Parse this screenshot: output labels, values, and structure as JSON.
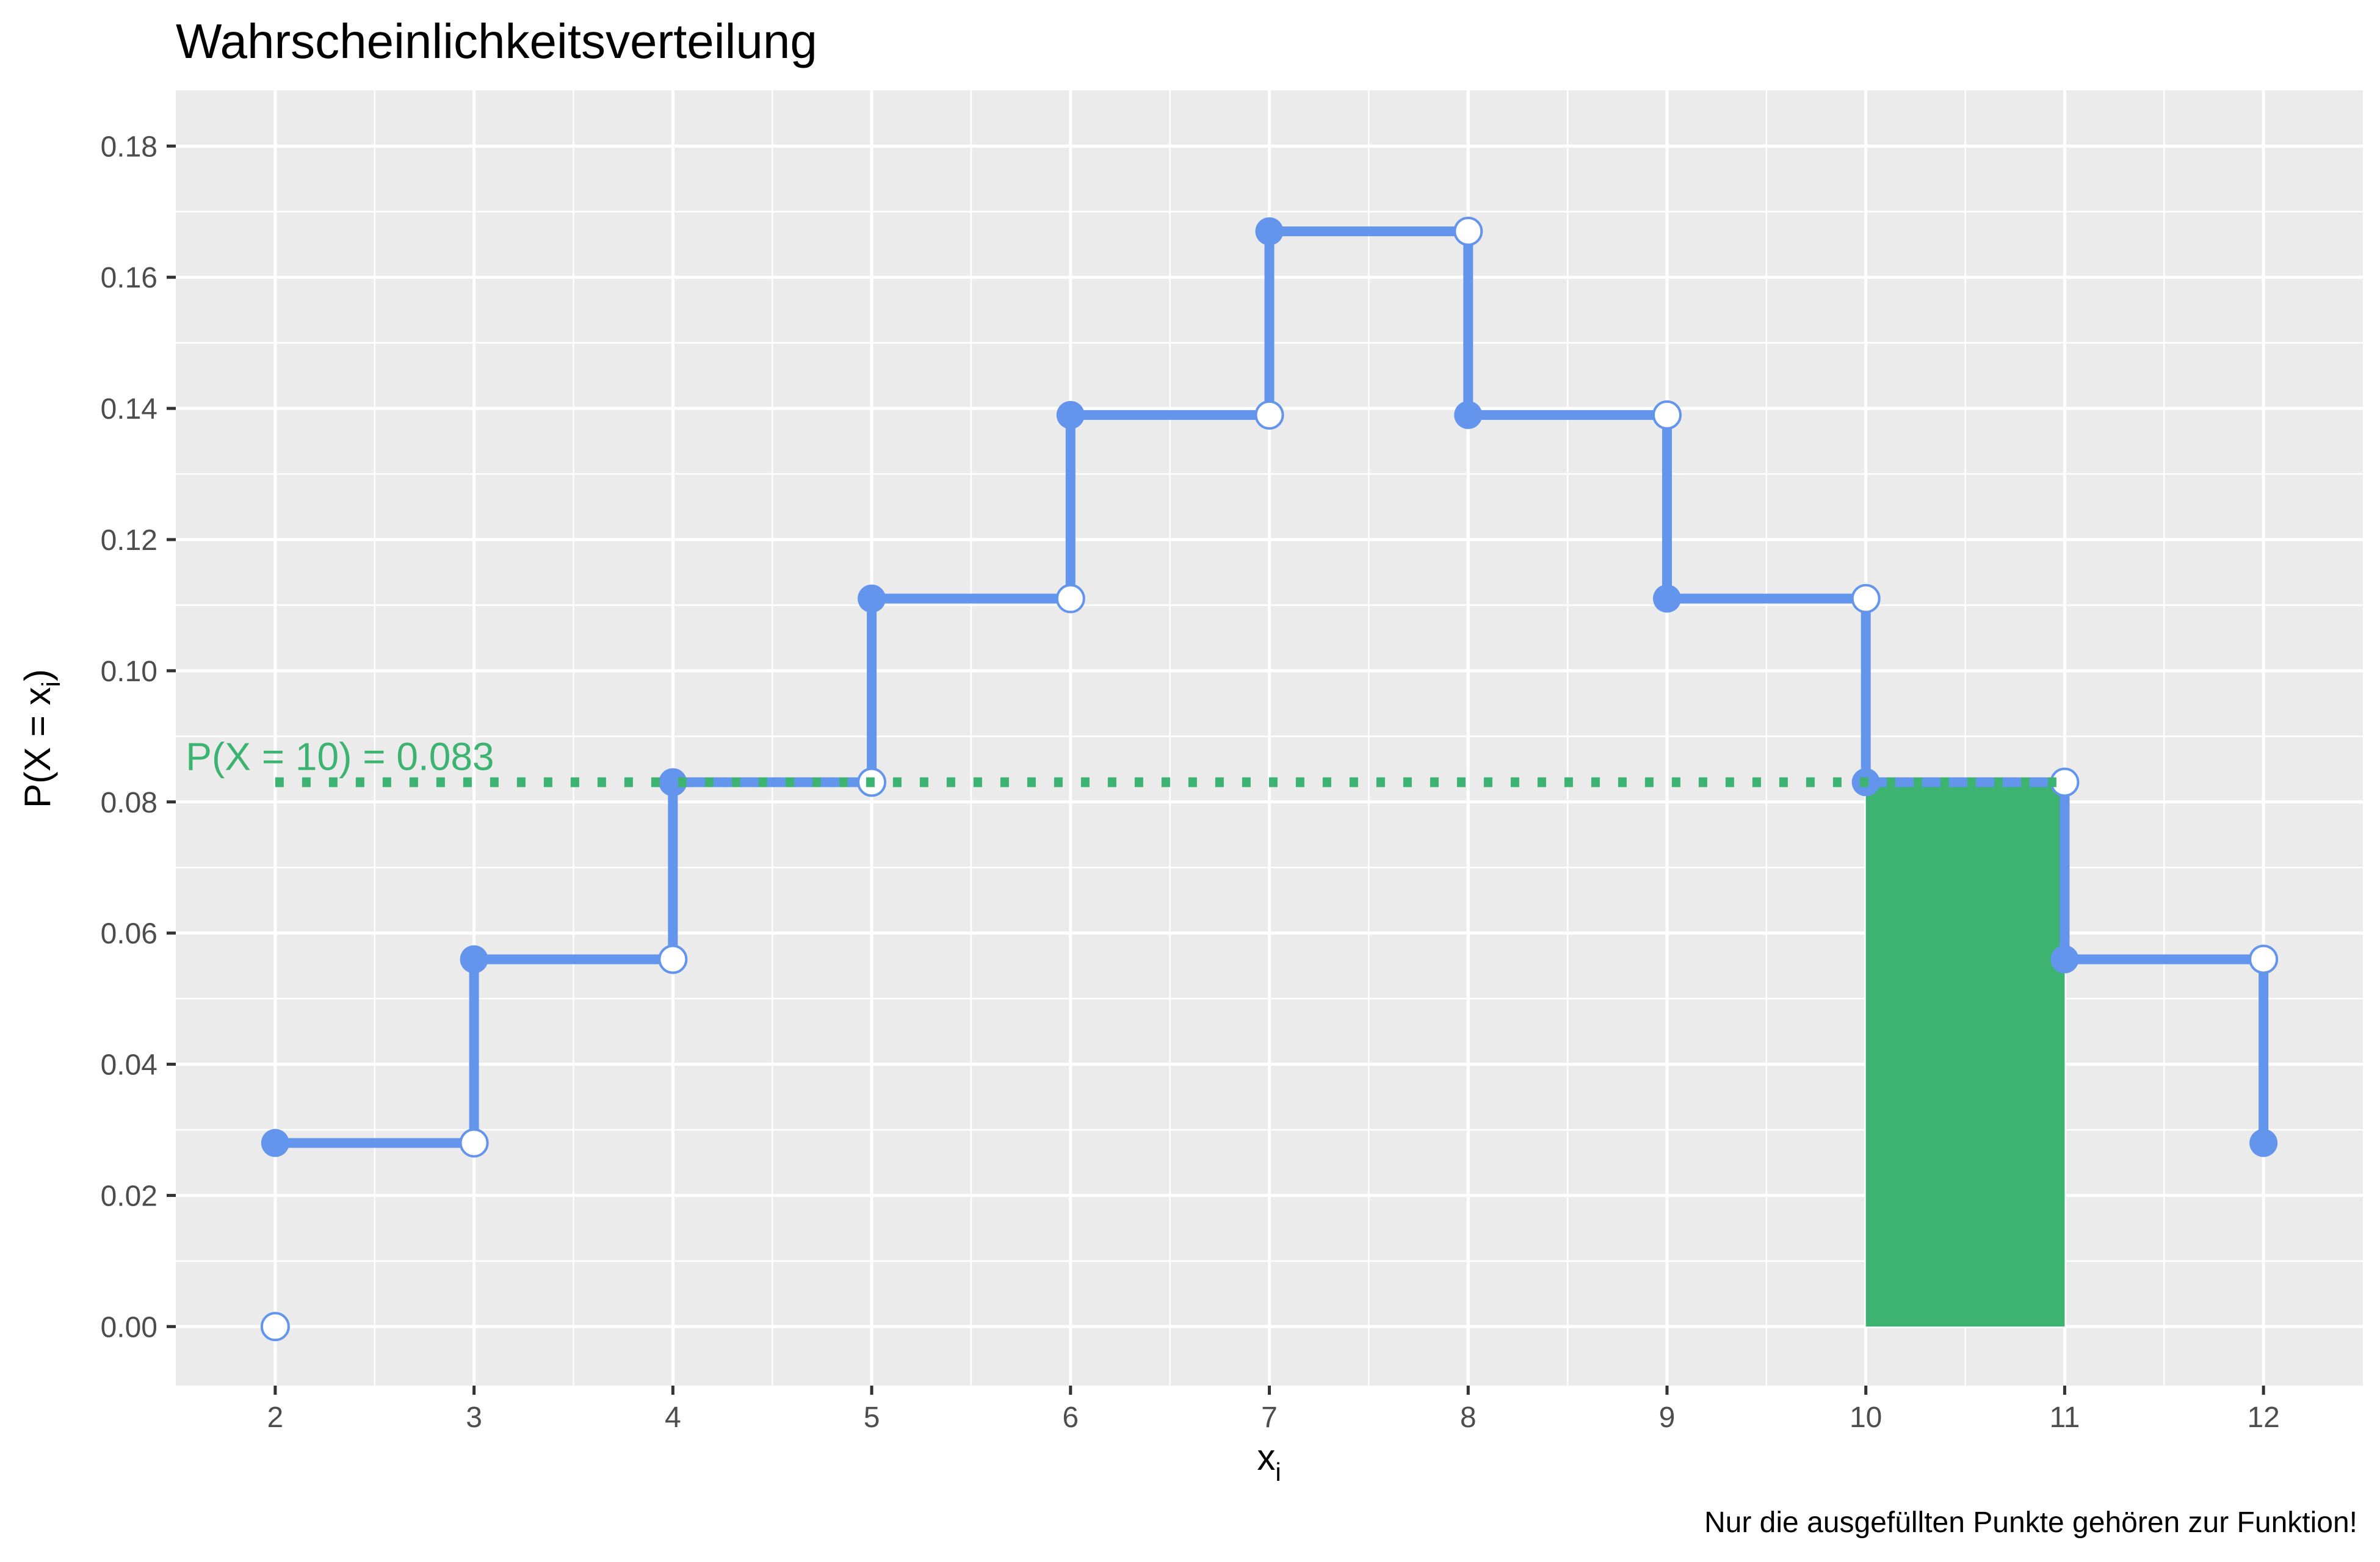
{
  "chart_data": {
    "type": "step",
    "title": "Wahrscheinlichkeitsverteilung",
    "xlabel_main": "x",
    "xlabel_sub": "i",
    "ylabel": "P(X = x",
    "ylabel_sub": "i",
    "ylabel_close": ")",
    "caption": "Nur die ausgefüllten Punkte gehören zur Funktion!",
    "xlim": [
      1.5,
      12.5
    ],
    "ylim": [
      -0.009,
      0.1885
    ],
    "x_ticks": [
      2,
      3,
      4,
      5,
      6,
      7,
      8,
      9,
      10,
      11,
      12
    ],
    "x_tick_labels": [
      "2",
      "3",
      "4",
      "5",
      "6",
      "7",
      "8",
      "9",
      "10",
      "11",
      "12"
    ],
    "y_ticks": [
      0.0,
      0.02,
      0.04,
      0.06,
      0.08,
      0.1,
      0.12,
      0.14,
      0.16,
      0.18
    ],
    "y_tick_labels": [
      "0.00",
      "0.02",
      "0.04",
      "0.06",
      "0.08",
      "0.10",
      "0.12",
      "0.14",
      "0.16",
      "0.18"
    ],
    "step_values": [
      {
        "x": 2,
        "p": 0.028
      },
      {
        "x": 3,
        "p": 0.056
      },
      {
        "x": 4,
        "p": 0.083
      },
      {
        "x": 5,
        "p": 0.111
      },
      {
        "x": 6,
        "p": 0.139
      },
      {
        "x": 7,
        "p": 0.167
      },
      {
        "x": 8,
        "p": 0.139
      },
      {
        "x": 9,
        "p": 0.111
      },
      {
        "x": 10,
        "p": 0.083
      },
      {
        "x": 11,
        "p": 0.056
      },
      {
        "x": 12,
        "p": 0.028
      }
    ],
    "filled_points": [
      {
        "x": 2,
        "y": 0.028
      },
      {
        "x": 3,
        "y": 0.056
      },
      {
        "x": 4,
        "y": 0.083
      },
      {
        "x": 5,
        "y": 0.111
      },
      {
        "x": 6,
        "y": 0.139
      },
      {
        "x": 7,
        "y": 0.167
      },
      {
        "x": 8,
        "y": 0.139
      },
      {
        "x": 9,
        "y": 0.111
      },
      {
        "x": 10,
        "y": 0.083
      },
      {
        "x": 11,
        "y": 0.056
      },
      {
        "x": 12,
        "y": 0.028
      }
    ],
    "open_points": [
      {
        "x": 2,
        "y": 0.0
      },
      {
        "x": 3,
        "y": 0.028
      },
      {
        "x": 4,
        "y": 0.056
      },
      {
        "x": 5,
        "y": 0.083
      },
      {
        "x": 6,
        "y": 0.111
      },
      {
        "x": 7,
        "y": 0.139
      },
      {
        "x": 8,
        "y": 0.167
      },
      {
        "x": 9,
        "y": 0.139
      },
      {
        "x": 10,
        "y": 0.111
      },
      {
        "x": 11,
        "y": 0.083
      },
      {
        "x": 12,
        "y": 0.056
      }
    ],
    "highlight": {
      "x_from": 10,
      "x_to": 11,
      "p": 0.083,
      "label_main": "P(X = 10) = 0.083"
    },
    "colors": {
      "panel": "#ebebeb",
      "grid": "#ffffff",
      "line": "#6495ed",
      "highlight": "#3cb371",
      "open_fill": "#ffffff"
    }
  }
}
